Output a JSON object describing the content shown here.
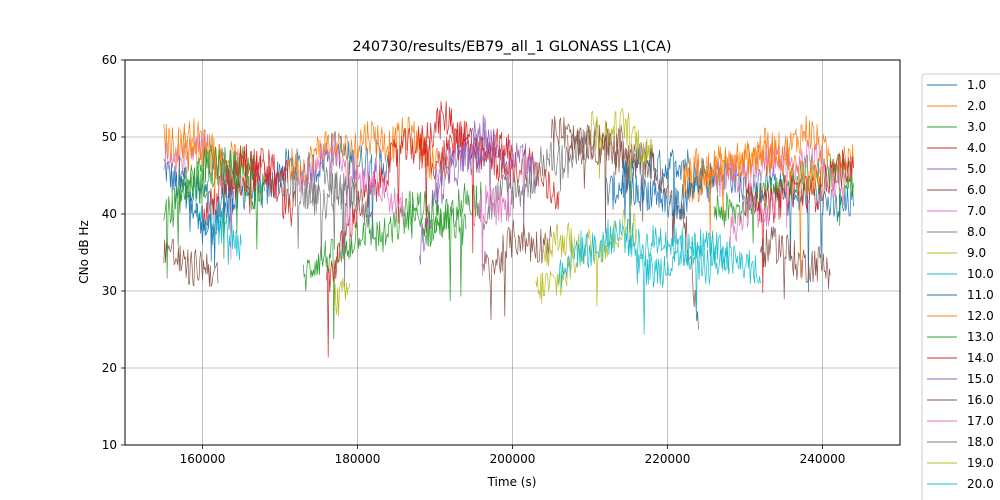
{
  "chart_data": {
    "type": "line",
    "title": "240730/results/EB79_all_1 GLONASS L1(CA)",
    "xlabel": "Time (s)",
    "ylabel": "CNo dB Hz",
    "xlim": [
      150000,
      250000
    ],
    "ylim": [
      10,
      60
    ],
    "xticks": [
      "160000",
      "180000",
      "200000",
      "220000",
      "240000"
    ],
    "yticks": [
      "10",
      "20",
      "30",
      "40",
      "50",
      "60"
    ],
    "grid": true,
    "legend_position": "outside-right",
    "series": [
      {
        "name": "1.0",
        "color": "#1f77b4",
        "segments": [
          [
            [
              155000,
              46
            ],
            [
              162000,
              40
            ],
            [
              170000,
              45
            ],
            [
              178000,
              48
            ],
            [
              184000,
              46
            ]
          ],
          [
            [
              212000,
              43
            ],
            [
              218000,
              47
            ],
            [
              226000,
              45
            ],
            [
              234000,
              43
            ],
            [
              244000,
              41
            ]
          ]
        ]
      },
      {
        "name": "2.0",
        "color": "#ff7f0e",
        "segments": [
          [
            [
              155000,
              50
            ],
            [
              160000,
              49
            ],
            [
              166000,
              45
            ]
          ],
          [
            [
              171000,
              46
            ],
            [
              178000,
              49
            ],
            [
              186000,
              50
            ],
            [
              192000,
              46
            ]
          ],
          [
            [
              222000,
              44
            ],
            [
              230000,
              47
            ],
            [
              238000,
              50
            ],
            [
              244000,
              46
            ]
          ]
        ]
      },
      {
        "name": "3.0",
        "color": "#2ca02c",
        "segments": [
          [
            [
              155000,
              40
            ],
            [
              162000,
              46
            ],
            [
              168000,
              43
            ]
          ],
          [
            [
              173000,
              32
            ],
            [
              180000,
              37
            ],
            [
              188000,
              39
            ],
            [
              194000,
              38
            ]
          ],
          [
            [
              226000,
              40
            ],
            [
              234000,
              43
            ],
            [
              240000,
              46
            ],
            [
              244000,
              44
            ]
          ]
        ]
      },
      {
        "name": "4.0",
        "color": "#d62728",
        "segments": [
          [
            [
              160000,
              40
            ],
            [
              166000,
              46
            ],
            [
              172000,
              41
            ]
          ],
          [
            [
              176000,
              32
            ],
            [
              182000,
              44
            ],
            [
              188000,
              50
            ],
            [
              192000,
              52
            ],
            [
              196000,
              47
            ],
            [
              202000,
              46
            ],
            [
              206000,
              43
            ]
          ],
          [
            [
              230000,
              41
            ],
            [
              238000,
              43
            ],
            [
              244000,
              46
            ]
          ]
        ]
      },
      {
        "name": "5.0",
        "color": "#9467bd",
        "segments": [
          [
            [
              188000,
              36
            ],
            [
              192000,
              46
            ],
            [
              196000,
              50
            ],
            [
              200000,
              48
            ],
            [
              203000,
              45
            ]
          ]
        ]
      },
      {
        "name": "6.0",
        "color": "#8c564b",
        "segments": [
          [
            [
              155000,
              35
            ],
            [
              160000,
              33
            ],
            [
              162000,
              31
            ]
          ],
          [
            [
              196000,
              33
            ],
            [
              200000,
              36
            ],
            [
              205000,
              37
            ]
          ],
          [
            [
              205000,
              50
            ],
            [
              212000,
              49
            ],
            [
              218000,
              46
            ],
            [
              222000,
              40
            ],
            [
              224000,
              25
            ]
          ],
          [
            [
              232000,
              36
            ],
            [
              238000,
              34
            ],
            [
              241000,
              32
            ]
          ]
        ]
      },
      {
        "name": "7.0",
        "color": "#e377c2",
        "segments": [
          [
            [
              155000,
              47
            ],
            [
              160000,
              48
            ],
            [
              165000,
              45
            ]
          ],
          [
            [
              172000,
              44
            ],
            [
              176000,
              48
            ],
            [
              180000,
              46
            ],
            [
              186000,
              41
            ]
          ],
          [
            [
              226000,
              44
            ],
            [
              232000,
              46
            ],
            [
              238000,
              47
            ],
            [
              243000,
              44
            ]
          ]
        ]
      },
      {
        "name": "8.0",
        "color": "#7f7f7f",
        "segments": [
          [
            [
              170000,
              43
            ],
            [
              175000,
              44
            ],
            [
              180000,
              43
            ]
          ],
          [
            [
              196000,
              40
            ],
            [
              200000,
              43
            ],
            [
              204000,
              46
            ],
            [
              210000,
              49
            ]
          ]
        ]
      },
      {
        "name": "9.0",
        "color": "#bcbd22",
        "segments": [
          [
            [
              177000,
              29
            ],
            [
              179000,
              31
            ]
          ],
          [
            [
              203000,
              29
            ],
            [
              208000,
              34
            ],
            [
              212000,
              37
            ],
            [
              216000,
              38
            ]
          ],
          [
            [
              210000,
              51
            ],
            [
              214000,
              51
            ],
            [
              218000,
              48
            ]
          ]
        ]
      },
      {
        "name": "10.0",
        "color": "#17becf",
        "segments": [
          [
            [
              159000,
              42
            ],
            [
              162000,
              38
            ],
            [
              165000,
              36
            ]
          ],
          [
            [
              206000,
              33
            ],
            [
              212000,
              37
            ],
            [
              220000,
              36
            ],
            [
              228000,
              35
            ],
            [
              232000,
              31
            ]
          ]
        ]
      },
      {
        "name": "11.0",
        "color": "#1f77b4",
        "segments": [
          [
            [
              157000,
              45
            ],
            [
              161000,
              37
            ],
            [
              164000,
              43
            ]
          ],
          [
            [
              214000,
              45
            ],
            [
              220000,
              41
            ],
            [
              226000,
              45
            ]
          ]
        ]
      },
      {
        "name": "12.0",
        "color": "#ff7f0e",
        "segments": [
          [
            [
              157000,
              49
            ],
            [
              163000,
              47
            ]
          ],
          [
            [
              222000,
              45
            ],
            [
              232000,
              48
            ],
            [
              240000,
              44
            ]
          ]
        ]
      },
      {
        "name": "13.0",
        "color": "#2ca02c",
        "segments": [
          [
            [
              157000,
              44
            ],
            [
              163000,
              47
            ],
            [
              167000,
              45
            ]
          ],
          [
            [
              186000,
              41
            ],
            [
              190000,
              40
            ],
            [
              196000,
              42
            ]
          ]
        ]
      },
      {
        "name": "14.0",
        "color": "#d62728",
        "segments": [
          [
            [
              163000,
              45
            ],
            [
              168000,
              47
            ],
            [
              171000,
              44
            ]
          ],
          [
            [
              188000,
              47
            ],
            [
              194000,
              49
            ],
            [
              200000,
              48
            ]
          ]
        ]
      },
      {
        "name": "15.0",
        "color": "#9467bd",
        "segments": [
          [
            [
              190000,
              44
            ],
            [
              194000,
              48
            ],
            [
              198000,
              49
            ]
          ]
        ]
      },
      {
        "name": "16.0",
        "color": "#8c564b",
        "segments": [
          [
            [
              207000,
              48
            ],
            [
              212000,
              50
            ],
            [
              216000,
              47
            ]
          ]
        ]
      },
      {
        "name": "17.0",
        "color": "#e377c2",
        "segments": [
          [
            [
              195000,
              40
            ],
            [
              200000,
              42
            ]
          ],
          [
            [
              228000,
              38
            ],
            [
              234000,
              42
            ]
          ]
        ]
      },
      {
        "name": "18.0",
        "color": "#7f7f7f",
        "segments": [
          [
            [
              174000,
              42
            ],
            [
              178000,
              43
            ],
            [
              182000,
              41
            ]
          ]
        ]
      },
      {
        "name": "19.0",
        "color": "#bcbd22",
        "segments": [
          [
            [
              204000,
              35
            ],
            [
              208000,
              37
            ]
          ]
        ]
      },
      {
        "name": "20.0",
        "color": "#17becf",
        "segments": [
          [
            [
              216000,
              32
            ],
            [
              222000,
              35
            ],
            [
              228000,
              33
            ]
          ]
        ]
      }
    ]
  }
}
